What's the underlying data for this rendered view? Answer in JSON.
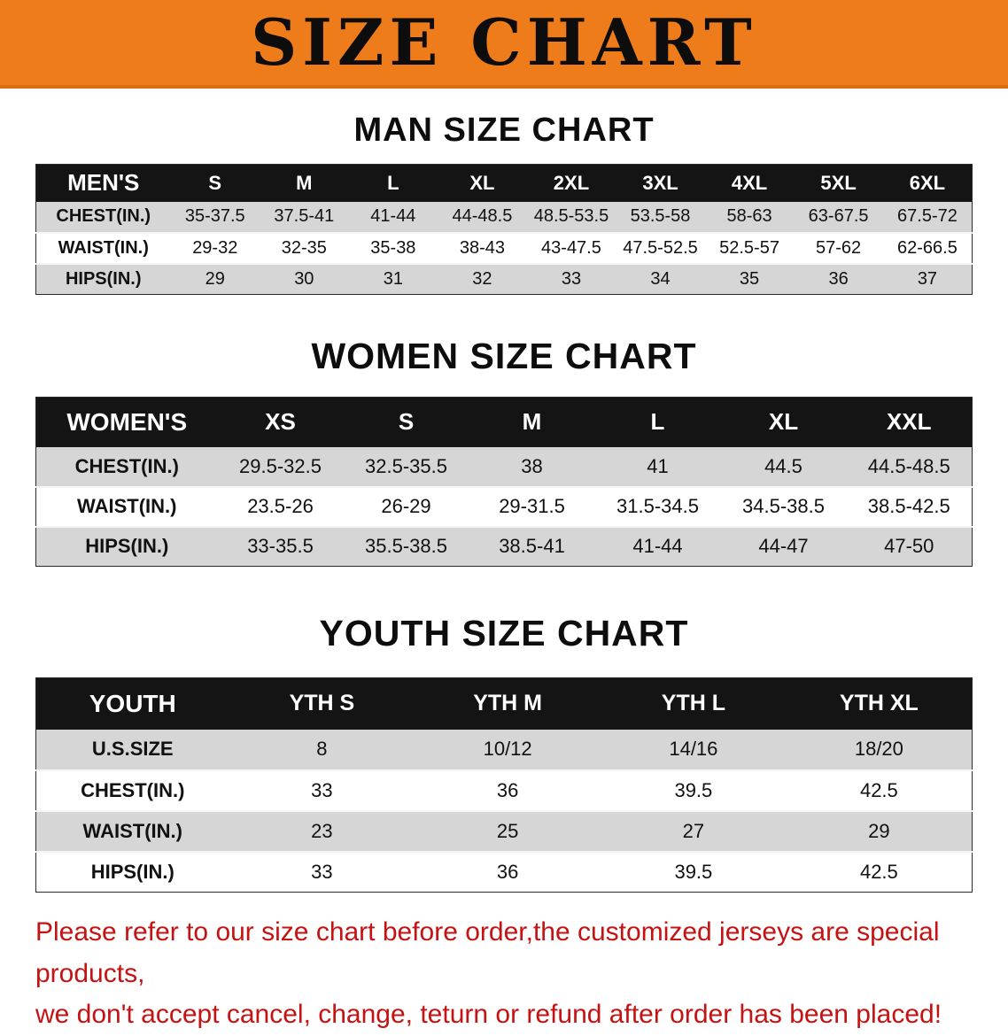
{
  "banner": {
    "title": "SIZE CHART"
  },
  "sections": [
    {
      "heading": "MAN SIZE CHART",
      "table": {
        "header": [
          "MEN'S",
          "S",
          "M",
          "L",
          "XL",
          "2XL",
          "3XL",
          "4XL",
          "5XL",
          "6XL"
        ],
        "rows": [
          [
            "CHEST(IN.)",
            "35-37.5",
            "37.5-41",
            "41-44",
            "44-48.5",
            "48.5-53.5",
            "53.5-58",
            "58-63",
            "63-67.5",
            "67.5-72"
          ],
          [
            "WAIST(IN.)",
            "29-32",
            "32-35",
            "35-38",
            "38-43",
            "43-47.5",
            "47.5-52.5",
            "52.5-57",
            "57-62",
            "62-66.5"
          ],
          [
            "HIPS(IN.)",
            "29",
            "30",
            "31",
            "32",
            "33",
            "34",
            "35",
            "36",
            "37"
          ]
        ]
      }
    },
    {
      "heading": "WOMEN SIZE CHART",
      "table": {
        "header": [
          "WOMEN'S",
          "XS",
          "S",
          "M",
          "L",
          "XL",
          "XXL"
        ],
        "rows": [
          [
            "CHEST(IN.)",
            "29.5-32.5",
            "32.5-35.5",
            "38",
            "41",
            "44.5",
            "44.5-48.5"
          ],
          [
            "WAIST(IN.)",
            "23.5-26",
            "26-29",
            "29-31.5",
            "31.5-34.5",
            "34.5-38.5",
            "38.5-42.5"
          ],
          [
            "HIPS(IN.)",
            "33-35.5",
            "35.5-38.5",
            "38.5-41",
            "41-44",
            "44-47",
            "47-50"
          ]
        ]
      }
    },
    {
      "heading": "YOUTH SIZE CHART",
      "table": {
        "header": [
          "YOUTH",
          "YTH S",
          "YTH M",
          "YTH L",
          "YTH XL"
        ],
        "rows": [
          [
            "U.S.SIZE",
            "8",
            "10/12",
            "14/16",
            "18/20"
          ],
          [
            "CHEST(IN.)",
            "33",
            "36",
            "39.5",
            "42.5"
          ],
          [
            "WAIST(IN.)",
            "23",
            "25",
            "27",
            "29"
          ],
          [
            "HIPS(IN.)",
            "33",
            "36",
            "39.5",
            "42.5"
          ]
        ]
      }
    }
  ],
  "disclaimer": {
    "line1": "Please refer to our size chart before order,the customized jerseys are special products,",
    "line2": "we don't accept cancel, change, teturn or refund after order has been placed!"
  },
  "colors": {
    "banner_orange": "#ee7c1b",
    "header_black": "#141414",
    "row_gray": "#d6d6d6",
    "disclaimer_red": "#c51212"
  }
}
